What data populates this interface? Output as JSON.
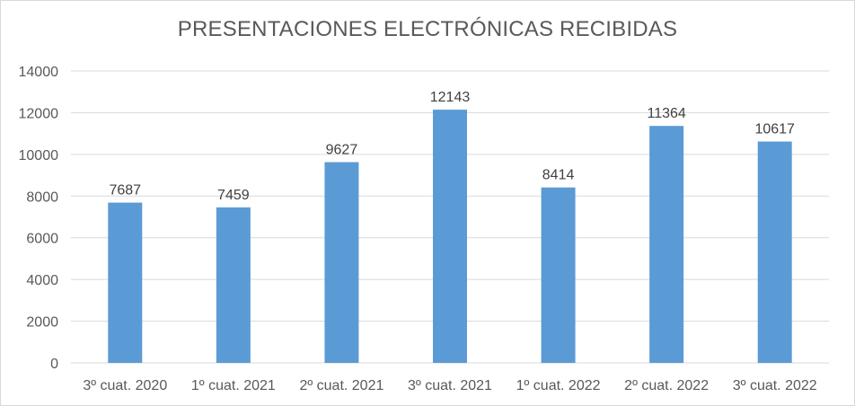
{
  "chart_data": {
    "type": "bar",
    "title": "PRESENTACIONES ELECTRÓNICAS RECIBIDAS",
    "categories": [
      "3º cuat. 2020",
      "1º cuat. 2021",
      "2º cuat. 2021",
      "3º cuat. 2021",
      "1º cuat. 2022",
      "2º cuat. 2022",
      "3º cuat. 2022"
    ],
    "values": [
      7687,
      7459,
      9627,
      12143,
      8414,
      11364,
      10617
    ],
    "data_labels": [
      "7687",
      "7459",
      "9627",
      "12143",
      "8414",
      "11364",
      "10617"
    ],
    "ylim": [
      0,
      14000
    ],
    "yticks": [
      "0",
      "2000",
      "4000",
      "6000",
      "8000",
      "10000",
      "12000",
      "14000"
    ],
    "grid": true,
    "bar_color": "#5b9bd5",
    "grid_color": "#d9d9d9",
    "xlabel": "",
    "ylabel": ""
  }
}
